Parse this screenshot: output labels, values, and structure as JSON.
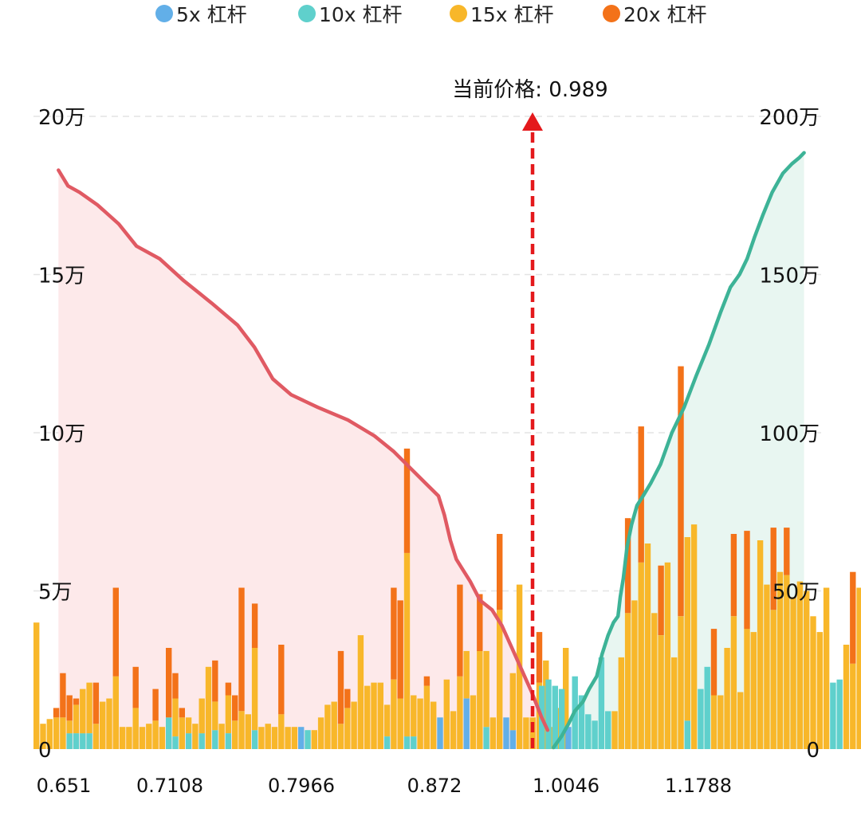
{
  "legend": [
    {
      "label": "5x 杠杆",
      "color": "#62afe8"
    },
    {
      "label": "10x 杠杆",
      "color": "#5fd0cc"
    },
    {
      "label": "15x 杠杆",
      "color": "#f8b72a"
    },
    {
      "label": "20x 杠杆",
      "color": "#f37219"
    }
  ],
  "current_price_label": "当前价格: 0.989",
  "chart_data": {
    "type": "bar",
    "current_price": 0.989,
    "x_ticks": [
      "0.651",
      "0.7108",
      "0.7966",
      "0.872",
      "1.0046",
      "1.1788"
    ],
    "left_axis": {
      "ticks": [
        "0",
        "5万",
        "10万",
        "15万",
        "20万"
      ],
      "ylim": [
        0,
        200000
      ]
    },
    "right_axis": {
      "ticks": [
        "0",
        "50万",
        "100万",
        "150万",
        "200万"
      ],
      "ylim": [
        0,
        2000000
      ]
    },
    "grid": true,
    "legend_position": "top",
    "series": [
      {
        "name": "5x 杠杆",
        "color": "#62afe8"
      },
      {
        "name": "10x 杠杆",
        "color": "#5fd0cc"
      },
      {
        "name": "15x 杠杆",
        "color": "#f8b72a"
      },
      {
        "name": "20x 杠杆",
        "color": "#f37219"
      }
    ],
    "bars_left": [
      [
        0,
        0,
        40000,
        0
      ],
      [
        0,
        0,
        8000,
        0
      ],
      [
        0,
        0,
        9500,
        0
      ],
      [
        0,
        0,
        10000,
        3000
      ],
      [
        0,
        0,
        10000,
        14000
      ],
      [
        0,
        5000,
        4000,
        8000
      ],
      [
        0,
        5000,
        9000,
        2000
      ],
      [
        0,
        5000,
        14000,
        0
      ],
      [
        0,
        5000,
        16000,
        0
      ],
      [
        0,
        0,
        8000,
        13000
      ],
      [
        0,
        0,
        15000,
        0
      ],
      [
        0,
        0,
        16000,
        0
      ],
      [
        0,
        0,
        23000,
        28000
      ],
      [
        0,
        0,
        7000,
        0
      ],
      [
        0,
        0,
        7000,
        0
      ],
      [
        0,
        0,
        13000,
        13000
      ],
      [
        0,
        0,
        7000,
        0
      ],
      [
        0,
        0,
        8000,
        0
      ],
      [
        0,
        0,
        9000,
        10000
      ],
      [
        0,
        0,
        7000,
        0
      ],
      [
        0,
        10000,
        0,
        22000
      ],
      [
        0,
        4000,
        12000,
        8000
      ],
      [
        0,
        0,
        10000,
        3000
      ],
      [
        0,
        5000,
        5000,
        0
      ],
      [
        0,
        0,
        8000,
        0
      ],
      [
        0,
        5000,
        11000,
        0
      ],
      [
        0,
        0,
        26000,
        0
      ],
      [
        0,
        6000,
        9000,
        13000
      ],
      [
        0,
        0,
        8000,
        0
      ],
      [
        0,
        5000,
        12000,
        4000
      ],
      [
        0,
        0,
        9000,
        8000
      ],
      [
        0,
        0,
        12000,
        39000
      ],
      [
        0,
        0,
        11000,
        0
      ],
      [
        0,
        6000,
        26000,
        14000
      ],
      [
        0,
        0,
        7000,
        0
      ],
      [
        0,
        0,
        8000,
        0
      ],
      [
        0,
        0,
        7000,
        0
      ],
      [
        0,
        0,
        11000,
        22000
      ],
      [
        0,
        0,
        7000,
        0
      ],
      [
        0,
        0,
        7000,
        0
      ],
      [
        7000,
        0,
        0,
        0
      ],
      [
        0,
        6000,
        0,
        0
      ],
      [
        0,
        0,
        6000,
        0
      ],
      [
        0,
        0,
        10000,
        0
      ],
      [
        0,
        0,
        14000,
        0
      ],
      [
        0,
        0,
        15000,
        0
      ],
      [
        0,
        0,
        8000,
        23000
      ],
      [
        0,
        0,
        13000,
        6000
      ],
      [
        0,
        0,
        15000,
        0
      ],
      [
        0,
        0,
        36000,
        0
      ],
      [
        0,
        0,
        20000,
        0
      ],
      [
        0,
        0,
        21000,
        0
      ],
      [
        0,
        0,
        21000,
        0
      ],
      [
        0,
        4000,
        10000,
        0
      ],
      [
        0,
        0,
        22000,
        29000
      ],
      [
        0,
        0,
        16000,
        31000
      ],
      [
        0,
        4000,
        58000,
        33000
      ],
      [
        0,
        4000,
        13000,
        0
      ],
      [
        0,
        0,
        16000,
        0
      ],
      [
        0,
        0,
        20000,
        3000
      ],
      [
        0,
        0,
        15000,
        0
      ],
      [
        10000,
        0,
        0,
        0
      ],
      [
        0,
        0,
        22000,
        0
      ],
      [
        0,
        0,
        12000,
        0
      ],
      [
        0,
        0,
        23000,
        29000
      ],
      [
        16000,
        0,
        15000,
        0
      ],
      [
        0,
        0,
        17000,
        0
      ],
      [
        0,
        0,
        31000,
        18000
      ],
      [
        0,
        7000,
        24000,
        0
      ],
      [
        0,
        0,
        10000,
        0
      ],
      [
        0,
        0,
        44000,
        24000
      ],
      [
        10000,
        0,
        0,
        0
      ],
      [
        6000,
        0,
        18000,
        0
      ],
      [
        0,
        0,
        52000,
        0
      ],
      [
        0,
        0,
        10000,
        0
      ],
      [
        0,
        0,
        10000,
        0
      ],
      [
        0,
        0,
        21000,
        16000
      ],
      [
        0,
        0,
        28000,
        0
      ],
      [
        0,
        0,
        7000,
        0
      ],
      [
        0,
        0,
        13000,
        0
      ],
      [
        0,
        0,
        32000,
        0
      ]
    ],
    "bars_right": [
      [
        0,
        20000,
        0,
        0
      ],
      [
        0,
        22000,
        0,
        0
      ],
      [
        0,
        20000,
        0,
        0
      ],
      [
        0,
        19000,
        0,
        0
      ],
      [
        7000,
        0,
        0,
        0
      ],
      [
        0,
        23000,
        0,
        0
      ],
      [
        0,
        17000,
        0,
        0
      ],
      [
        0,
        11000,
        0,
        0
      ],
      [
        0,
        9000,
        0,
        0
      ],
      [
        0,
        29000,
        0,
        0
      ],
      [
        0,
        12000,
        0,
        0
      ],
      [
        0,
        0,
        12000,
        0
      ],
      [
        0,
        0,
        29000,
        0
      ],
      [
        0,
        0,
        43000,
        30000
      ],
      [
        0,
        0,
        47000,
        0
      ],
      [
        0,
        0,
        59000,
        43000
      ],
      [
        0,
        0,
        65000,
        0
      ],
      [
        0,
        0,
        43000,
        0
      ],
      [
        0,
        0,
        36000,
        22000
      ],
      [
        0,
        0,
        59000,
        0
      ],
      [
        0,
        0,
        29000,
        0
      ],
      [
        0,
        0,
        42000,
        79000
      ],
      [
        0,
        9000,
        58000,
        0
      ],
      [
        0,
        0,
        71000,
        0
      ],
      [
        0,
        19000,
        0,
        0
      ],
      [
        0,
        26000,
        0,
        0
      ],
      [
        0,
        0,
        17000,
        21000
      ],
      [
        0,
        0,
        17000,
        0
      ],
      [
        0,
        0,
        32000,
        0
      ],
      [
        0,
        0,
        42000,
        26000
      ],
      [
        0,
        0,
        18000,
        0
      ],
      [
        0,
        0,
        38000,
        31000
      ],
      [
        0,
        0,
        37000,
        0
      ],
      [
        0,
        0,
        66000,
        0
      ],
      [
        0,
        0,
        52000,
        0
      ],
      [
        0,
        0,
        44000,
        26000
      ],
      [
        0,
        0,
        56000,
        0
      ],
      [
        0,
        0,
        55000,
        15000
      ],
      [
        0,
        0,
        48000,
        0
      ],
      [
        0,
        0,
        53000,
        0
      ],
      [
        0,
        0,
        50000,
        0
      ],
      [
        0,
        0,
        42000,
        0
      ],
      [
        0,
        0,
        37000,
        0
      ],
      [
        0,
        0,
        51000,
        0
      ],
      [
        0,
        21000,
        0,
        0
      ],
      [
        0,
        22000,
        0,
        0
      ],
      [
        0,
        0,
        33000,
        0
      ],
      [
        0,
        0,
        27000,
        29000
      ],
      [
        0,
        0,
        51000,
        0
      ],
      [
        0,
        0,
        49000,
        0
      ],
      [
        0,
        0,
        45000,
        0
      ],
      [
        0,
        0,
        39000,
        0
      ],
      [
        0,
        0,
        38000,
        0
      ],
      [
        0,
        0,
        30000,
        0
      ],
      [
        0,
        19000,
        0,
        0
      ],
      [
        0,
        26000,
        0,
        0
      ],
      [
        0,
        16000,
        0,
        0
      ],
      [
        10000,
        0,
        0,
        0
      ]
    ],
    "cumulative_short": [
      [
        0.648,
        183000
      ],
      [
        0.6534,
        178000
      ],
      [
        0.6599,
        176000
      ],
      [
        0.67,
        172000
      ],
      [
        0.682,
        166000
      ],
      [
        0.692,
        159000
      ],
      [
        0.705,
        155000
      ],
      [
        0.72,
        148000
      ],
      [
        0.738,
        141000
      ],
      [
        0.755,
        134000
      ],
      [
        0.766,
        127000
      ],
      [
        0.778,
        117000
      ],
      [
        0.79,
        112000
      ],
      [
        0.806,
        108000
      ],
      [
        0.823,
        104000
      ],
      [
        0.838,
        99000
      ],
      [
        0.849,
        94000
      ],
      [
        0.858,
        89000
      ],
      [
        0.867,
        84000
      ],
      [
        0.876,
        80000
      ],
      [
        0.882,
        74000
      ],
      [
        0.888,
        66000
      ],
      [
        0.894,
        60000
      ],
      [
        0.9,
        57000
      ],
      [
        0.908,
        53000
      ],
      [
        0.918,
        47000
      ],
      [
        0.93,
        44000
      ],
      [
        0.94,
        39000
      ],
      [
        0.95,
        32000
      ],
      [
        0.96,
        25000
      ],
      [
        0.97,
        18000
      ],
      [
        0.98,
        10000
      ],
      [
        0.986,
        6000
      ]
    ],
    "cumulative_long": [
      [
        0.992,
        5000
      ],
      [
        1.0,
        40000
      ],
      [
        1.008,
        80000
      ],
      [
        1.016,
        120000
      ],
      [
        1.027,
        150000
      ],
      [
        1.035,
        190000
      ],
      [
        1.045,
        230000
      ],
      [
        1.052,
        300000
      ],
      [
        1.06,
        360000
      ],
      [
        1.067,
        400000
      ],
      [
        1.073,
        420000
      ],
      [
        1.076,
        480000
      ],
      [
        1.08,
        540000
      ],
      [
        1.085,
        640000
      ],
      [
        1.091,
        710000
      ],
      [
        1.098,
        770000
      ],
      [
        1.106,
        800000
      ],
      [
        1.116,
        840000
      ],
      [
        1.129,
        900000
      ],
      [
        1.144,
        1000000
      ],
      [
        1.16,
        1080000
      ],
      [
        1.176,
        1180000
      ],
      [
        1.193,
        1280000
      ],
      [
        1.208,
        1380000
      ],
      [
        1.221,
        1460000
      ],
      [
        1.233,
        1500000
      ],
      [
        1.243,
        1550000
      ],
      [
        1.253,
        1620000
      ],
      [
        1.264,
        1690000
      ],
      [
        1.276,
        1760000
      ],
      [
        1.29,
        1820000
      ],
      [
        1.302,
        1850000
      ],
      [
        1.312,
        1870000
      ],
      [
        1.318,
        1885000
      ]
    ],
    "cumulative_short_color": "#e05a63",
    "cumulative_long_color": "#3db397",
    "current_price_color": "#e4191c"
  }
}
